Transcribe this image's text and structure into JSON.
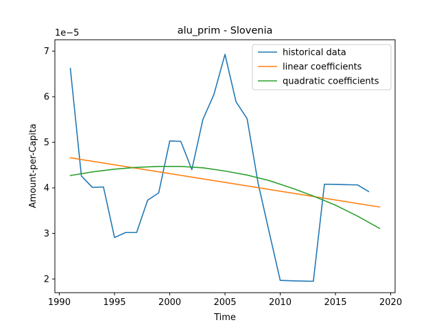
{
  "chart_data": {
    "type": "line",
    "title": "alu_prim - Slovenia",
    "xlabel": "Time",
    "ylabel": "Amount-per-Capita",
    "y_offset_label": "1e−5",
    "xlim": [
      1989.6,
      2020.4
    ],
    "ylim": [
      1.7,
      7.25
    ],
    "x_ticks": [
      1990,
      1995,
      2000,
      2005,
      2010,
      2015,
      2020
    ],
    "y_ticks": [
      2,
      3,
      4,
      5,
      6,
      7
    ],
    "grid": false,
    "legend_position": "top-right",
    "series": [
      {
        "name": "historical data",
        "color": "#1f77b4",
        "x": [
          1991,
          1992,
          1993,
          1994,
          1995,
          1996,
          1997,
          1998,
          1999,
          2000,
          2001,
          2002,
          2003,
          2004,
          2005,
          2006,
          2007,
          2008,
          2009,
          2010,
          2011,
          2012,
          2013,
          2014,
          2015,
          2016,
          2017,
          2018
        ],
        "y": [
          6.62,
          4.26,
          4.01,
          4.02,
          2.91,
          3.02,
          3.02,
          3.73,
          3.89,
          5.03,
          5.02,
          4.4,
          5.5,
          6.05,
          6.93,
          5.89,
          5.52,
          4.1,
          3.03,
          1.97,
          1.96,
          1.955,
          1.95,
          4.08,
          4.075,
          4.07,
          4.065,
          3.92
        ]
      },
      {
        "name": "linear coefficients",
        "color": "#ff7f0e",
        "x": [
          1991,
          2019
        ],
        "y": [
          4.66,
          3.58
        ]
      },
      {
        "name": "quadratic coefficients",
        "color": "#2ca02c",
        "x": [
          1991,
          1993,
          1995,
          1997,
          1999,
          2001,
          2003,
          2005,
          2007,
          2009,
          2011,
          2013,
          2015,
          2017,
          2019
        ],
        "y": [
          4.27,
          4.35,
          4.41,
          4.45,
          4.47,
          4.47,
          4.44,
          4.37,
          4.28,
          4.16,
          4.0,
          3.82,
          3.62,
          3.38,
          3.11
        ]
      }
    ]
  }
}
